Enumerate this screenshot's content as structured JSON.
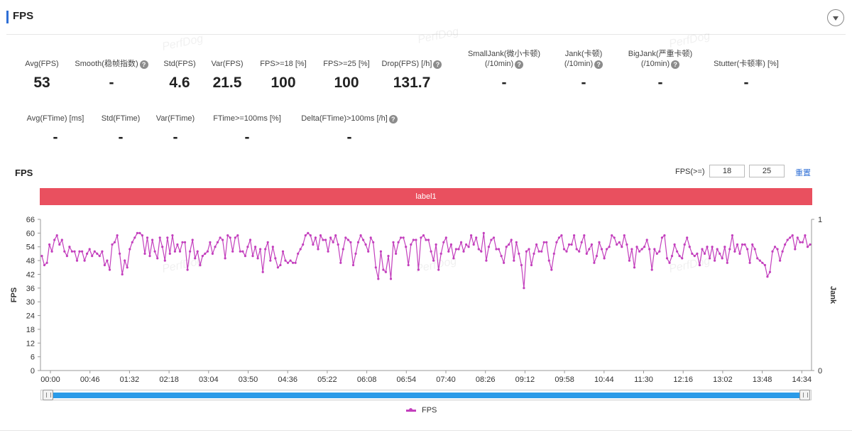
{
  "panel": {
    "title": "FPS",
    "watermark": "PerfDog"
  },
  "summary_row1": [
    {
      "label": "Avg(FPS)",
      "value": "53",
      "help": false
    },
    {
      "label": "Smooth(稳帧指数)",
      "value": "-",
      "help": true
    },
    {
      "label": "Std(FPS)",
      "value": "4.6",
      "help": false
    },
    {
      "label": "Var(FPS)",
      "value": "21.5",
      "help": false
    },
    {
      "label": "FPS>=18 [%]",
      "value": "100",
      "help": false
    },
    {
      "label": "FPS>=25 [%]",
      "value": "100",
      "help": false
    },
    {
      "label": "Drop(FPS) [/h]",
      "value": "131.7",
      "help": true
    },
    {
      "label": "SmallJank(微小卡顿)",
      "label2": "(/10min)",
      "value": "-",
      "help": true
    },
    {
      "label": "Jank(卡顿)",
      "label2": "(/10min)",
      "value": "-",
      "help": true
    },
    {
      "label": "BigJank(严重卡顿)",
      "label2": "(/10min)",
      "value": "-",
      "help": true
    },
    {
      "label": "Stutter(卡顿率) [%]",
      "value": "-",
      "help": false
    }
  ],
  "summary_row2": [
    {
      "label": "Avg(FTime) [ms]",
      "value": "-",
      "help": false
    },
    {
      "label": "Std(FTime)",
      "value": "-",
      "help": false
    },
    {
      "label": "Var(FTime)",
      "value": "-",
      "help": false
    },
    {
      "label": "FTime>=100ms [%]",
      "value": "-",
      "help": false
    },
    {
      "label": "Delta(FTime)>100ms [/h]",
      "value": "-",
      "help": true
    }
  ],
  "chart_controls": {
    "title": "FPS",
    "threshold_label": "FPS(>=)",
    "threshold_low": "18",
    "threshold_high": "25",
    "reset_label": "重置"
  },
  "label_band": "label1",
  "colors": {
    "series": "#c33fbd",
    "band": "#e9505f",
    "accent": "#2f6fd6",
    "slider": "#2b9be8"
  },
  "chart_data": {
    "type": "line",
    "title": "FPS",
    "ylabel": "FPS",
    "y2label": "Jank",
    "ylim": [
      0,
      66
    ],
    "yticks": [
      0,
      6,
      12,
      18,
      24,
      30,
      36,
      42,
      48,
      54,
      60,
      66
    ],
    "y2lim": [
      0,
      1
    ],
    "y2ticks": [
      0,
      1
    ],
    "xlabels": [
      "00:00",
      "00:46",
      "01:32",
      "02:18",
      "03:04",
      "03:50",
      "04:36",
      "05:22",
      "06:08",
      "06:54",
      "07:40",
      "08:26",
      "09:12",
      "09:58",
      "10:44",
      "11:30",
      "12:16",
      "13:02",
      "13:48",
      "14:34"
    ],
    "x_interval_seconds": 5,
    "grid": false,
    "legend": "bottom-center",
    "series": [
      {
        "name": "FPS",
        "values": [
          50,
          46,
          47,
          55,
          52,
          57,
          59,
          55,
          57,
          52,
          50,
          54,
          52,
          52,
          48,
          52,
          52,
          48,
          51,
          53,
          50,
          52,
          51,
          50,
          52,
          46,
          48,
          44,
          55,
          56,
          59,
          51,
          42,
          48,
          45,
          53,
          56,
          58,
          60,
          60,
          59,
          51,
          58,
          50,
          57,
          52,
          49,
          58,
          54,
          48,
          58,
          51,
          59,
          52,
          55,
          52,
          56,
          56,
          44,
          52,
          57,
          49,
          52,
          46,
          50,
          51,
          52,
          56,
          51,
          54,
          56,
          58,
          57,
          49,
          59,
          58,
          52,
          58,
          59,
          52,
          52,
          50,
          54,
          57,
          50,
          54,
          49,
          53,
          43,
          53,
          56,
          48,
          54,
          49,
          45,
          46,
          52,
          48,
          47,
          48,
          47,
          47,
          51,
          53,
          55,
          59,
          60,
          59,
          55,
          58,
          53,
          59,
          57,
          57,
          52,
          58,
          56,
          59,
          55,
          47,
          53,
          58,
          57,
          56,
          46,
          51,
          56,
          59,
          57,
          55,
          52,
          58,
          56,
          45,
          40,
          52,
          44,
          43,
          50,
          40,
          56,
          51,
          56,
          58,
          58,
          54,
          46,
          55,
          57,
          57,
          44,
          58,
          59,
          57,
          57,
          52,
          48,
          55,
          44,
          51,
          56,
          58,
          52,
          55,
          49,
          53,
          53,
          56,
          52,
          55,
          54,
          59,
          55,
          58,
          53,
          52,
          60,
          48,
          54,
          57,
          58,
          53,
          53,
          50,
          47,
          54,
          55,
          57,
          48,
          56,
          51,
          46,
          36,
          52,
          53,
          46,
          51,
          55,
          52,
          52,
          56,
          56,
          48,
          44,
          51,
          56,
          58,
          59,
          53,
          52,
          55,
          55,
          59,
          53,
          52,
          56,
          59,
          51,
          53,
          55,
          47,
          50,
          56,
          53,
          49,
          53,
          54,
          59,
          58,
          55,
          56,
          54,
          59,
          55,
          48,
          53,
          45,
          54,
          52,
          53,
          54,
          57,
          53,
          44,
          53,
          51,
          52,
          58,
          59,
          49,
          47,
          50,
          55,
          52,
          50,
          49,
          55,
          58,
          54,
          51,
          50,
          51,
          46,
          53,
          51,
          54,
          49,
          54,
          48,
          53,
          51,
          49,
          54,
          47,
          53,
          59,
          52,
          55,
          51,
          55,
          55,
          53,
          47,
          55,
          53,
          49,
          48,
          47,
          46,
          41,
          43,
          52,
          54,
          53,
          48,
          52,
          55,
          57,
          58,
          59,
          53,
          58,
          56,
          56,
          59,
          54,
          55
        ]
      }
    ]
  }
}
